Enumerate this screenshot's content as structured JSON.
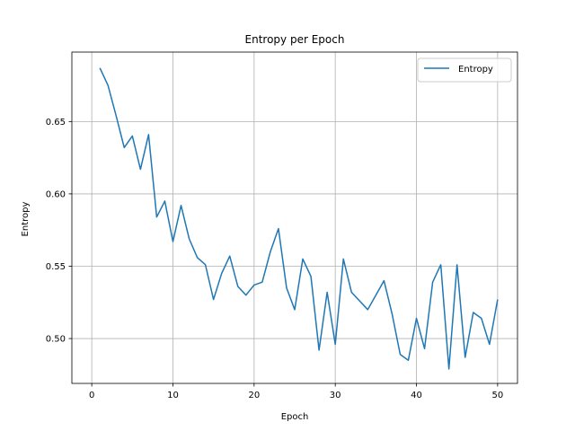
{
  "chart_data": {
    "type": "line",
    "title": "Entropy per Epoch",
    "xlabel": "Epoch",
    "ylabel": "Entropy",
    "xlim": [
      -2.45,
      52.45
    ],
    "ylim": [
      0.469,
      0.698
    ],
    "xticks": [
      0,
      10,
      20,
      30,
      40,
      50
    ],
    "yticks": [
      0.5,
      0.55,
      0.6,
      0.65
    ],
    "ytick_labels": [
      "0.50",
      "0.55",
      "0.60",
      "0.65"
    ],
    "grid": true,
    "legend": {
      "placement": "upper right",
      "entries": [
        "Entropy"
      ]
    },
    "series": [
      {
        "name": "Entropy",
        "color": "#1f77b4",
        "x": [
          1,
          2,
          3,
          4,
          5,
          6,
          7,
          8,
          9,
          10,
          11,
          12,
          13,
          14,
          15,
          16,
          17,
          18,
          19,
          20,
          21,
          22,
          23,
          24,
          25,
          26,
          27,
          28,
          29,
          30,
          31,
          32,
          33,
          34,
          35,
          36,
          37,
          38,
          39,
          40,
          41,
          42,
          43,
          44,
          45,
          46,
          47,
          48,
          49,
          50
        ],
        "values": [
          0.687,
          0.675,
          0.654,
          0.632,
          0.64,
          0.617,
          0.641,
          0.584,
          0.595,
          0.567,
          0.592,
          0.569,
          0.556,
          0.551,
          0.527,
          0.545,
          0.557,
          0.536,
          0.53,
          0.537,
          0.539,
          0.56,
          0.576,
          0.535,
          0.52,
          0.555,
          0.543,
          0.492,
          0.532,
          0.496,
          0.555,
          0.532,
          0.526,
          0.52,
          0.53,
          0.54,
          0.517,
          0.489,
          0.485,
          0.514,
          0.493,
          0.539,
          0.551,
          0.479,
          0.551,
          0.487,
          0.518,
          0.514,
          0.496,
          0.527
        ]
      }
    ]
  }
}
